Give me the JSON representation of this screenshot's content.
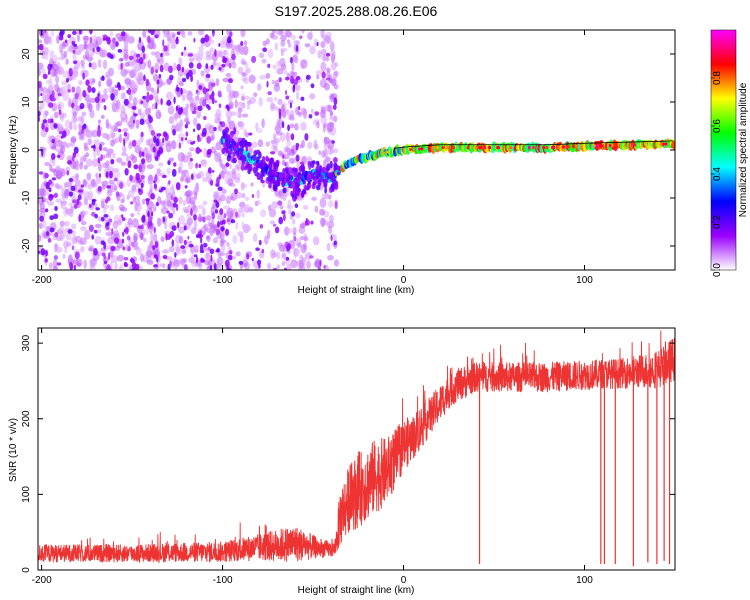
{
  "chart_data": [
    {
      "type": "heatmap",
      "title": "S197.2025.288.08.26.E06",
      "xlabel": "Height of straight line (km)",
      "ylabel": "Frequency (Hz)",
      "xlim": [
        -202,
        150
      ],
      "ylim": [
        -25,
        25
      ],
      "x_ticks": [
        -200,
        -100,
        0,
        100
      ],
      "y_ticks": [
        -20,
        -10,
        0,
        10,
        20
      ],
      "colorbar": {
        "label": "Normalized spectral amplitude",
        "range": [
          0,
          1
        ],
        "ticks": [
          0.0,
          0.2,
          0.4,
          0.6,
          0.8
        ],
        "tick_labels": [
          "0.0",
          "0.2",
          "0.4",
          "0.6",
          "0.8"
        ],
        "colors": [
          "#ffffff",
          "#9900ff",
          "#0000ff",
          "#00ffff",
          "#00ff00",
          "#ffff00",
          "#ff0000",
          "#ff00ff"
        ]
      },
      "signal_trace": {
        "x": [
          -100,
          -90,
          -80,
          -70,
          -60,
          -50,
          -40,
          -35,
          -30,
          -20,
          -10,
          0,
          20,
          40,
          60,
          80,
          100,
          120,
          140,
          150
        ],
        "y": [
          2,
          -0.5,
          -3,
          -5.5,
          -7,
          -5,
          -6,
          -4,
          -2.5,
          -1.5,
          -0.5,
          0,
          0.5,
          0.5,
          0.5,
          0.5,
          0.8,
          1,
          1.2,
          1.3
        ]
      },
      "noise_region": {
        "x_range": [
          -202,
          -37
        ],
        "y_range": [
          -25,
          25
        ]
      }
    },
    {
      "type": "line",
      "title": "",
      "xlabel": "Height of straight line (km)",
      "ylabel": "SNR (10 * v/v)",
      "xlim": [
        -202,
        150
      ],
      "ylim": [
        0,
        320
      ],
      "x_ticks": [
        -200,
        -100,
        0,
        100
      ],
      "y_ticks": [
        0,
        100,
        200,
        300
      ],
      "series": [
        {
          "name": "SNR",
          "color": "#ee3333",
          "envelope": {
            "x": [
              -202,
              -150,
              -100,
              -80,
              -60,
              -45,
              -38,
              -35,
              -30,
              -25,
              -20,
              -15,
              -10,
              -5,
              0,
              5,
              10,
              15,
              20,
              25,
              30,
              35,
              40,
              60,
              80,
              100,
              120,
              140,
              150
            ],
            "mean": [
              22,
              22,
              24,
              30,
              35,
              28,
              27,
              70,
              95,
              105,
              115,
              125,
              130,
              145,
              165,
              175,
              190,
              205,
              220,
              235,
              245,
              250,
              255,
              255,
              255,
              258,
              260,
              265,
              280
            ],
            "amp": [
              12,
              12,
              14,
              18,
              25,
              12,
              10,
              40,
              45,
              50,
              50,
              50,
              45,
              40,
              35,
              30,
              30,
              25,
              25,
              22,
              22,
              22,
              20,
              20,
              20,
              20,
              20,
              25,
              30
            ]
          },
          "dropouts": [
            {
              "x": 42,
              "y": 8
            },
            {
              "x": 109,
              "y": 8
            },
            {
              "x": 111,
              "y": 8
            },
            {
              "x": 117,
              "y": 8
            },
            {
              "x": 127,
              "y": 5
            },
            {
              "x": 135,
              "y": 10
            },
            {
              "x": 140,
              "y": 8
            },
            {
              "x": 144,
              "y": 12
            },
            {
              "x": 147,
              "y": 8
            }
          ]
        }
      ]
    }
  ]
}
